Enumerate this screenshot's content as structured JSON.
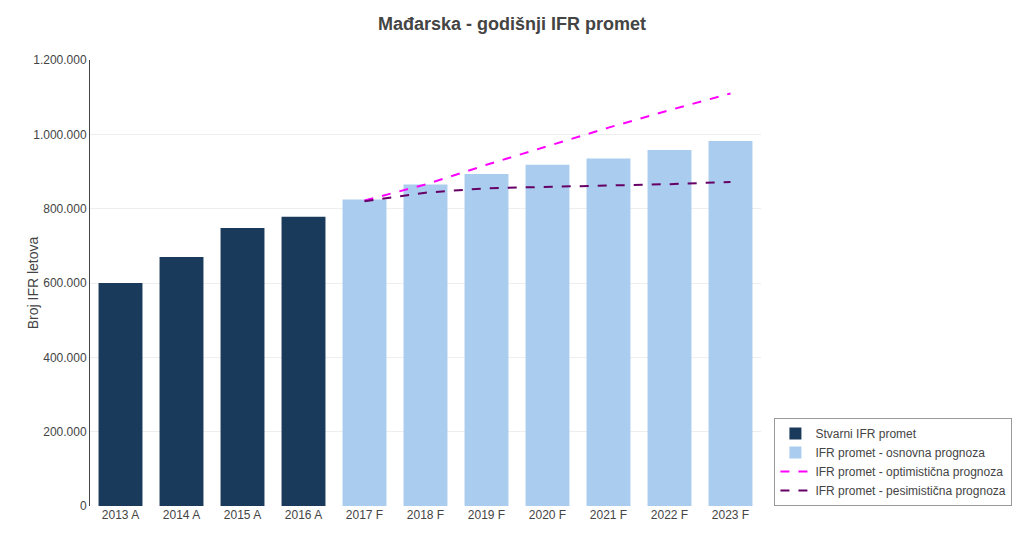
{
  "chart_data": {
    "type": "bar",
    "title": "Mađarska - godišnji IFR promet",
    "y_label": "Broj IFR letova",
    "categories": [
      "2013 A",
      "2014 A",
      "2015 A",
      "2016 A",
      "2017 F",
      "2018 F",
      "2019 F",
      "2020 F",
      "2021 F",
      "2022 F",
      "2023 F"
    ],
    "series": [
      {
        "name": "Stvarni IFR promet",
        "type": "bar",
        "color": "#1a3a5c",
        "values": [
          600000,
          670000,
          748000,
          778000,
          null,
          null,
          null,
          null,
          null,
          null,
          null
        ]
      },
      {
        "name": "IFR promet - osnovna prognoza",
        "type": "bar",
        "color": "#aaccee",
        "values": [
          null,
          null,
          null,
          null,
          825000,
          865000,
          893000,
          918000,
          935000,
          958000,
          982000
        ]
      },
      {
        "name": "IFR promet - optimistična prognoza",
        "type": "line",
        "color": "#ff00ff",
        "line_style": "dashed",
        "values": [
          null,
          null,
          null,
          null,
          822000,
          865000,
          918000,
          968000,
          1018000,
          1065000,
          1110000
        ]
      },
      {
        "name": "IFR promet - pesimistična prognoza",
        "type": "line",
        "color": "#660066",
        "line_style": "dashed",
        "values": [
          null,
          null,
          null,
          null,
          820000,
          843000,
          855000,
          858000,
          862000,
          866000,
          872000
        ]
      }
    ],
    "ylim": [
      0,
      1200000
    ],
    "yticks": [
      0,
      {
        "value": 200000,
        "label": "200.000"
      },
      {
        "value": 400000,
        "label": "400.000"
      },
      {
        "value": 600000,
        "label": "600.000"
      },
      {
        "value": 800000,
        "label": "800.000"
      },
      {
        "value": 1000000,
        "label": "1.000.000"
      },
      {
        "value": 1200000,
        "label": "1.200.000"
      }
    ],
    "grid": true,
    "legend": "lower right"
  }
}
